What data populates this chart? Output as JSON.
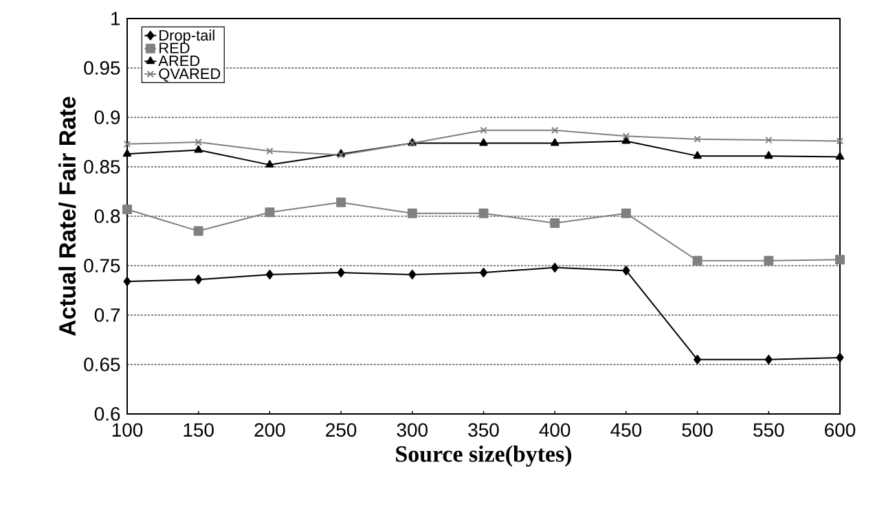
{
  "chart_data": {
    "type": "line",
    "xlabel": "Source size(bytes)",
    "ylabel": "Actual Rate/ Fair Rate",
    "x": [
      100,
      150,
      200,
      250,
      300,
      350,
      400,
      450,
      500,
      550,
      600
    ],
    "series": [
      {
        "name": "Drop-tail",
        "color": "#000000",
        "marker": "diamond",
        "values": [
          0.734,
          0.736,
          0.741,
          0.743,
          0.741,
          0.743,
          0.748,
          0.745,
          0.655,
          0.655,
          0.657
        ]
      },
      {
        "name": "RED",
        "color": "#808080",
        "marker": "square",
        "values": [
          0.807,
          0.785,
          0.804,
          0.814,
          0.803,
          0.803,
          0.793,
          0.803,
          0.755,
          0.755,
          0.756
        ]
      },
      {
        "name": "ARED",
        "color": "#000000",
        "marker": "triangle",
        "values": [
          0.863,
          0.867,
          0.852,
          0.863,
          0.874,
          0.874,
          0.874,
          0.876,
          0.861,
          0.861,
          0.86
        ]
      },
      {
        "name": "QVARED",
        "color": "#808080",
        "marker": "cross",
        "values": [
          0.873,
          0.875,
          0.866,
          0.862,
          0.874,
          0.887,
          0.887,
          0.881,
          0.878,
          0.877,
          0.876
        ]
      }
    ],
    "xlim": [
      100,
      600
    ],
    "xticks": [
      100,
      150,
      200,
      250,
      300,
      350,
      400,
      450,
      500,
      550,
      600
    ],
    "ylim": [
      0.6,
      1
    ],
    "yticks": [
      0.6,
      0.65,
      0.7,
      0.75,
      0.8,
      0.85,
      0.9,
      0.95,
      1
    ],
    "grid": "y",
    "legend": "top left",
    "line_style": "solid"
  }
}
